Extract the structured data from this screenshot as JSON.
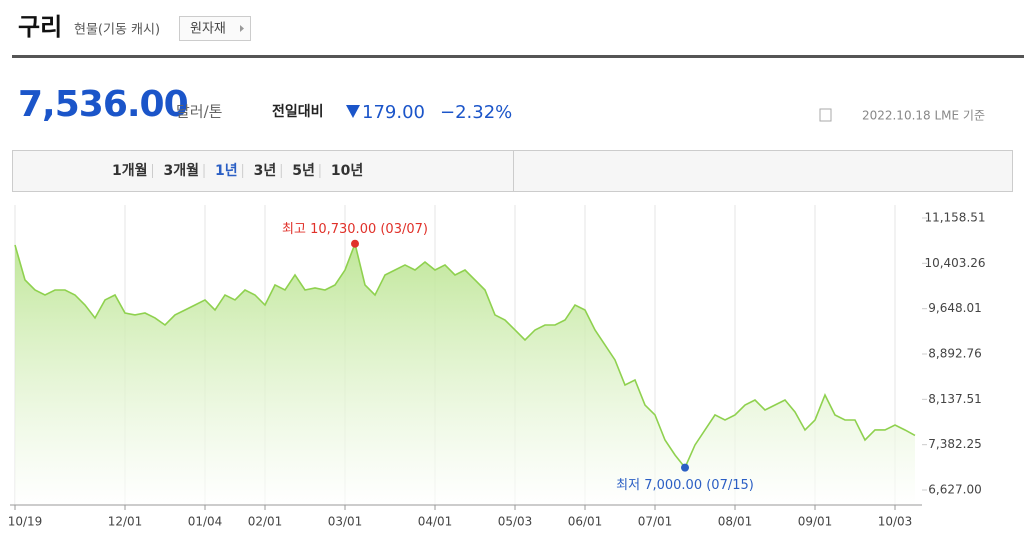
{
  "header": {
    "title": "구리",
    "subtitle": "현물(기동 캐시)",
    "button": "원자재"
  },
  "quote": {
    "price": "7,536.00",
    "unit": "달러/톤",
    "change_label": "전일대비",
    "change": "179.00",
    "change_pct": "−2.32%",
    "as_of": "2022.10.18 LME 기준"
  },
  "tabs": {
    "items": [
      "1개월",
      "3개월",
      "1년",
      "3년",
      "5년",
      "10년"
    ],
    "active": "1년"
  },
  "chart_data": {
    "type": "area",
    "categories": [
      "10/19",
      null,
      null,
      null,
      null,
      null,
      null,
      null,
      null,
      null,
      null,
      "12/01",
      null,
      null,
      null,
      null,
      null,
      null,
      null,
      "01/04",
      null,
      null,
      null,
      null,
      null,
      "02/01",
      null,
      null,
      null,
      null,
      null,
      null,
      null,
      "03/01",
      null,
      null,
      null,
      null,
      null,
      null,
      null,
      null,
      "04/01",
      null,
      null,
      null,
      null,
      null,
      null,
      null,
      "05/03",
      null,
      null,
      null,
      null,
      null,
      null,
      "06/01",
      null,
      null,
      null,
      null,
      null,
      null,
      "07/01",
      null,
      null,
      null,
      null,
      null,
      null,
      null,
      "08/01",
      null,
      null,
      null,
      null,
      null,
      null,
      null,
      "09/01",
      null,
      null,
      null,
      null,
      null,
      null,
      null,
      "10/03",
      null,
      null
    ],
    "values": [
      10709,
      10126,
      9959,
      9876,
      9959,
      9959,
      9876,
      9709,
      9493,
      9793,
      9876,
      9576,
      9543,
      9576,
      9493,
      9376,
      9543,
      9626,
      9709,
      9793,
      9626,
      9876,
      9793,
      9959,
      9876,
      9709,
      10043,
      9959,
      10209,
      9959,
      9993,
      9959,
      10043,
      10292,
      10730,
      10043,
      9876,
      10209,
      10292,
      10376,
      10292,
      10426,
      10292,
      10376,
      10209,
      10292,
      10126,
      9959,
      9543,
      9459,
      9293,
      9126,
      9293,
      9376,
      9376,
      9459,
      9709,
      9626,
      9293,
      9043,
      8793,
      8376,
      8460,
      8043,
      7877,
      7460,
      7210,
      7000,
      7377,
      7627,
      7877,
      7793,
      7877,
      8043,
      8126,
      7960,
      8043,
      8126,
      7927,
      7627,
      7793,
      8210,
      7877,
      7793,
      7793,
      7460,
      7627,
      7627,
      7710,
      7627,
      7536
    ],
    "color": "#8fd14f",
    "ylim": [
      6627.0,
      11158.51
    ],
    "yticks": [
      {
        "value": 6627.0,
        "label": "6,627.00"
      },
      {
        "value": 7382.25,
        "label": "7,382.25"
      },
      {
        "value": 8137.51,
        "label": "8,137.51"
      },
      {
        "value": 8892.76,
        "label": "8,892.76"
      },
      {
        "value": 9648.01,
        "label": "9,648.01"
      },
      {
        "value": 10403.26,
        "label": "10,403.26"
      },
      {
        "value": 11158.51,
        "label": "11,158.51"
      }
    ],
    "annotations": {
      "max": "최고 10,730.00 (03/07)",
      "min": "최저 7,000.00 (07/15)"
    }
  }
}
